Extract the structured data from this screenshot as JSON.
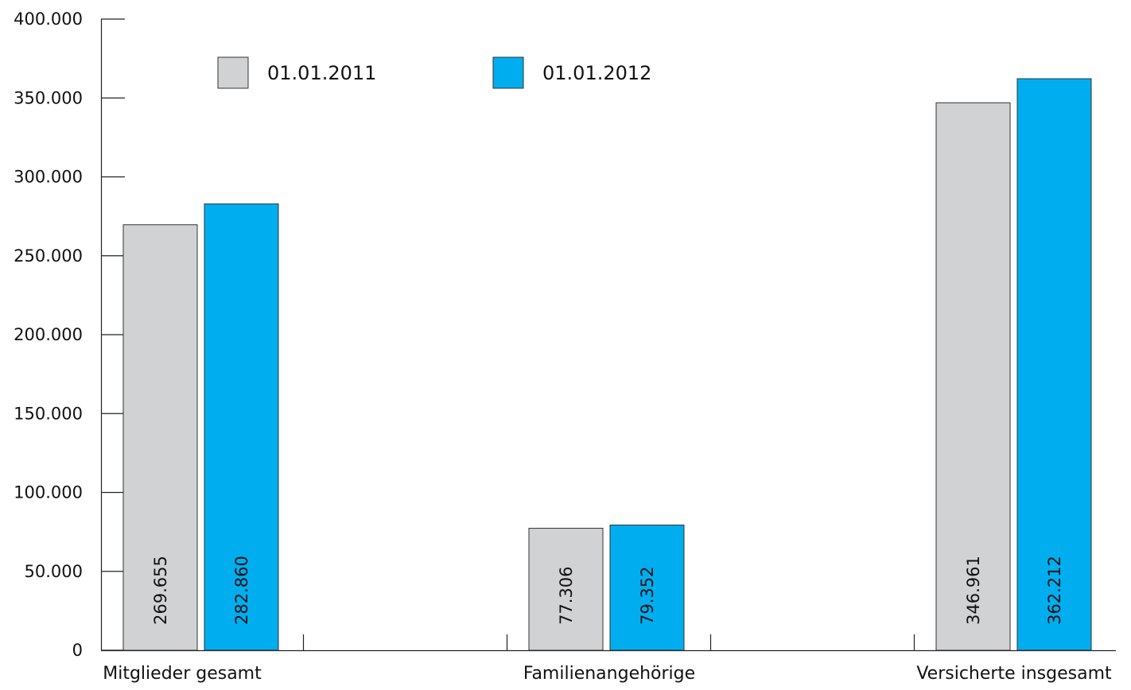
{
  "chart_data": {
    "type": "bar",
    "title": "",
    "xlabel": "",
    "ylabel": "",
    "ylim": [
      0,
      400000
    ],
    "yticks": [
      0,
      50000,
      100000,
      150000,
      200000,
      250000,
      300000,
      350000,
      400000
    ],
    "ytick_labels": [
      "0",
      "50.000",
      "100.000",
      "150.000",
      "200.000",
      "250.000",
      "300.000",
      "350.000",
      "400.000"
    ],
    "categories": [
      "Mitglieder gesamt",
      "Familienangehörige",
      "Versicherte insgesamt"
    ],
    "series": [
      {
        "name": "01.01.2011",
        "color": "#d1d2d4",
        "values": [
          269655,
          77306,
          346961
        ],
        "labels": [
          "269.655",
          "77.306",
          "346.961"
        ]
      },
      {
        "name": "01.01.2012",
        "color": "#00aeef",
        "values": [
          282860,
          79352,
          362212
        ],
        "labels": [
          "282.860",
          "79.352",
          "362.212"
        ]
      }
    ],
    "grid": false,
    "legend_position": "top"
  }
}
